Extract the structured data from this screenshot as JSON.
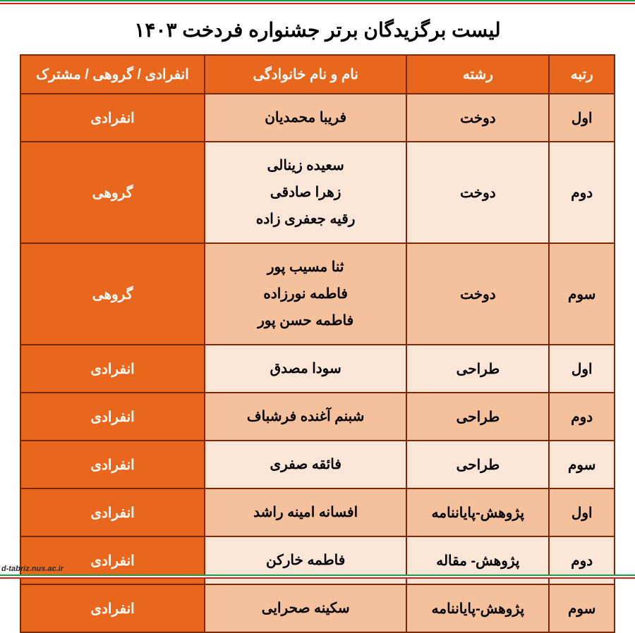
{
  "title": "لیست برگزیدگان برتر جشنواره فردخت ۱۴۰۳",
  "watermark": "d-tabriz.nus.ac.ir",
  "colors": {
    "header_bg": "#e9671d",
    "row_light": "#fbe5d6",
    "row_dark": "#f5c19d",
    "border": "#7a2806",
    "flag_green": "#18a048",
    "flag_white": "#ffffff",
    "flag_red": "#d32020"
  },
  "col_widths_pct": [
    11,
    24,
    34,
    31
  ],
  "table": {
    "columns": [
      "رتبه",
      "رشته",
      "نام و نام خانوادگی",
      "انفرادی / گروهی / مشترک"
    ],
    "rows": [
      {
        "rank": "اول",
        "field": "دوخت",
        "names": [
          "فریبا محمدیان"
        ],
        "type": "انفرادی",
        "shade": "dark"
      },
      {
        "rank": "دوم",
        "field": "دوخت",
        "names": [
          "سعیده زینالی",
          "زهرا صادقی",
          "رقیه جعفری زاده"
        ],
        "type": "گروهی",
        "shade": "light"
      },
      {
        "rank": "سوم",
        "field": "دوخت",
        "names": [
          "ثنا مسیب پور",
          "فاطمه نورزاده",
          "فاطمه حسن پور"
        ],
        "type": "گروهی",
        "shade": "dark"
      },
      {
        "rank": "اول",
        "field": "طراحی",
        "names": [
          "سودا مصدق"
        ],
        "type": "انفرادی",
        "shade": "light"
      },
      {
        "rank": "دوم",
        "field": "طراحی",
        "names": [
          "شبنم آغنده فرشباف"
        ],
        "type": "انفرادی",
        "shade": "dark"
      },
      {
        "rank": "سوم",
        "field": "طراحی",
        "names": [
          "فائقه صفری"
        ],
        "type": "انفرادی",
        "shade": "light"
      },
      {
        "rank": "اول",
        "field": "پژوهش-پایاننامه",
        "names": [
          "افسانه امینه راشد"
        ],
        "type": "انفرادی",
        "shade": "dark"
      },
      {
        "rank": "دوم",
        "field": "پژوهش- مقاله",
        "names": [
          "فاطمه خارکن"
        ],
        "type": "انفرادی",
        "shade": "light"
      },
      {
        "rank": "سوم",
        "field": "پژوهش-پایاننامه",
        "names": [
          "سکینه صحرایی"
        ],
        "type": "انفرادی",
        "shade": "dark"
      }
    ]
  }
}
